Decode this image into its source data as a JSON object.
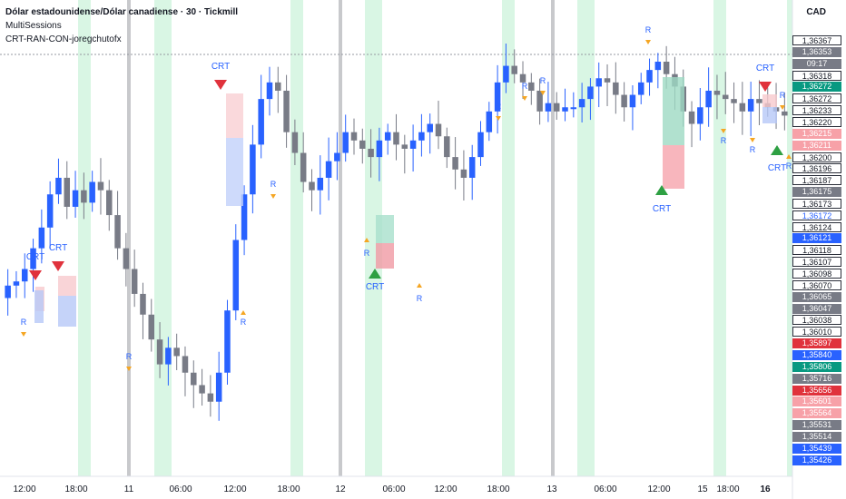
{
  "header": {
    "title": "Dólar estadounidense/Dólar canadiense · 30 · Tickmill",
    "indicator_1": "MultiSessions",
    "indicator_2": "CRT-RAN-CON-joregchutofx",
    "currency": "CAD"
  },
  "colors": {
    "up": "#2962ff",
    "down": "#787b86",
    "session_green": "#d9f6e4",
    "session_gray": "#c8c9cc",
    "crt_bear": "#e0323c",
    "crt_bull": "#2ea043",
    "r_marker": "#f5a623",
    "label_blue": "#2962ff"
  },
  "chart_data": {
    "type": "candlestick",
    "title": "Dólar estadounidense/Dólar canadiense · 30 · Tickmill",
    "ylim": [
      1.3535,
      1.3642
    ],
    "x_ticks": [
      "12:00",
      "18:00",
      "11",
      "06:00",
      "12:00",
      "18:00",
      "12",
      "06:00",
      "12:00",
      "18:00",
      "13",
      "06:00",
      "12:00",
      "15",
      "18:00",
      "16"
    ],
    "bold_ticks": [
      "16"
    ],
    "price_scale": [
      {
        "value": "1,36367",
        "bg": "#ffffff",
        "fg": "#131722"
      },
      {
        "value": "1,36353",
        "bg": "#787b86",
        "fg": "#ffffff"
      },
      {
        "value": "09:17",
        "bg": "#787b86",
        "fg": "#ffffff"
      },
      {
        "value": "1,36318",
        "bg": "#ffffff",
        "fg": "#131722"
      },
      {
        "value": "1,36272",
        "bg": "#089981",
        "fg": "#ffffff"
      },
      {
        "value": "1,36272",
        "bg": "#ffffff",
        "fg": "#131722"
      },
      {
        "value": "1,36233",
        "bg": "#ffffff",
        "fg": "#131722"
      },
      {
        "value": "1,36220",
        "bg": "#ffffff",
        "fg": "#131722"
      },
      {
        "value": "1,36215",
        "bg": "#f7a1a8",
        "fg": "#ffffff"
      },
      {
        "value": "1,36211",
        "bg": "#f7a1a8",
        "fg": "#ffffff"
      },
      {
        "value": "1,36200",
        "bg": "#ffffff",
        "fg": "#131722"
      },
      {
        "value": "1,36196",
        "bg": "#ffffff",
        "fg": "#131722"
      },
      {
        "value": "1,36187",
        "bg": "#ffffff",
        "fg": "#131722"
      },
      {
        "value": "1,36175",
        "bg": "#787b86",
        "fg": "#ffffff"
      },
      {
        "value": "1,36173",
        "bg": "#ffffff",
        "fg": "#131722"
      },
      {
        "value": "1,36172",
        "bg": "#ffffff",
        "fg": "#2962ff"
      },
      {
        "value": "1,36124",
        "bg": "#ffffff",
        "fg": "#131722"
      },
      {
        "value": "1,36121",
        "bg": "#2962ff",
        "fg": "#ffffff"
      },
      {
        "value": "1,36118",
        "bg": "#ffffff",
        "fg": "#131722"
      },
      {
        "value": "1,36107",
        "bg": "#ffffff",
        "fg": "#131722"
      },
      {
        "value": "1,36098",
        "bg": "#ffffff",
        "fg": "#131722"
      },
      {
        "value": "1,36070",
        "bg": "#ffffff",
        "fg": "#131722"
      },
      {
        "value": "1,36065",
        "bg": "#787b86",
        "fg": "#ffffff"
      },
      {
        "value": "1,36047",
        "bg": "#787b86",
        "fg": "#ffffff"
      },
      {
        "value": "1,36038",
        "bg": "#ffffff",
        "fg": "#131722"
      },
      {
        "value": "1,36010",
        "bg": "#ffffff",
        "fg": "#131722"
      },
      {
        "value": "1,35897",
        "bg": "#e0323c",
        "fg": "#ffffff"
      },
      {
        "value": "1,35840",
        "bg": "#2962ff",
        "fg": "#ffffff"
      },
      {
        "value": "1,35806",
        "bg": "#089981",
        "fg": "#ffffff"
      },
      {
        "value": "1,35716",
        "bg": "#787b86",
        "fg": "#ffffff"
      },
      {
        "value": "1,35656",
        "bg": "#e0323c",
        "fg": "#ffffff"
      },
      {
        "value": "1,35601",
        "bg": "#f7a1a8",
        "fg": "#ffffff"
      },
      {
        "value": "1,35564",
        "bg": "#f7a1a8",
        "fg": "#ffffff"
      },
      {
        "value": "1,35531",
        "bg": "#787b86",
        "fg": "#ffffff"
      },
      {
        "value": "1,35514",
        "bg": "#787b86",
        "fg": "#ffffff"
      },
      {
        "value": "1,35439",
        "bg": "#2962ff",
        "fg": "#ffffff"
      },
      {
        "value": "1,35426",
        "bg": "#2962ff",
        "fg": "#ffffff"
      }
    ],
    "close_path": [
      1.3581,
      1.3582,
      1.3585,
      1.359,
      1.3595,
      1.3603,
      1.3607,
      1.36,
      1.3604,
      1.3601,
      1.3606,
      1.3604,
      1.3598,
      1.359,
      1.3585,
      1.3579,
      1.3574,
      1.3568,
      1.3562,
      1.3566,
      1.3564,
      1.356,
      1.3557,
      1.3555,
      1.3553,
      1.356,
      1.3575,
      1.3592,
      1.3603,
      1.3615,
      1.3626,
      1.363,
      1.3628,
      1.3618,
      1.3613,
      1.3606,
      1.3604,
      1.3607,
      1.3611,
      1.3613,
      1.3618,
      1.3616,
      1.3614,
      1.3612,
      1.3616,
      1.3618,
      1.3615,
      1.3614,
      1.3616,
      1.3618,
      1.362,
      1.3617,
      1.3612,
      1.3609,
      1.3607,
      1.3612,
      1.3618,
      1.3623,
      1.363,
      1.3634,
      1.3632,
      1.363,
      1.3628,
      1.3623,
      1.3625,
      1.3623,
      1.3624,
      1.3624,
      1.3626,
      1.3629,
      1.3631,
      1.363,
      1.3627,
      1.3624,
      1.3627,
      1.363,
      1.3633,
      1.3635,
      1.3632,
      1.3629,
      1.3623,
      1.362,
      1.3624,
      1.3628,
      1.3627,
      1.3626,
      1.3625,
      1.3623,
      1.3626,
      1.3625,
      1.3624,
      1.3623,
      1.3622
    ]
  }
}
